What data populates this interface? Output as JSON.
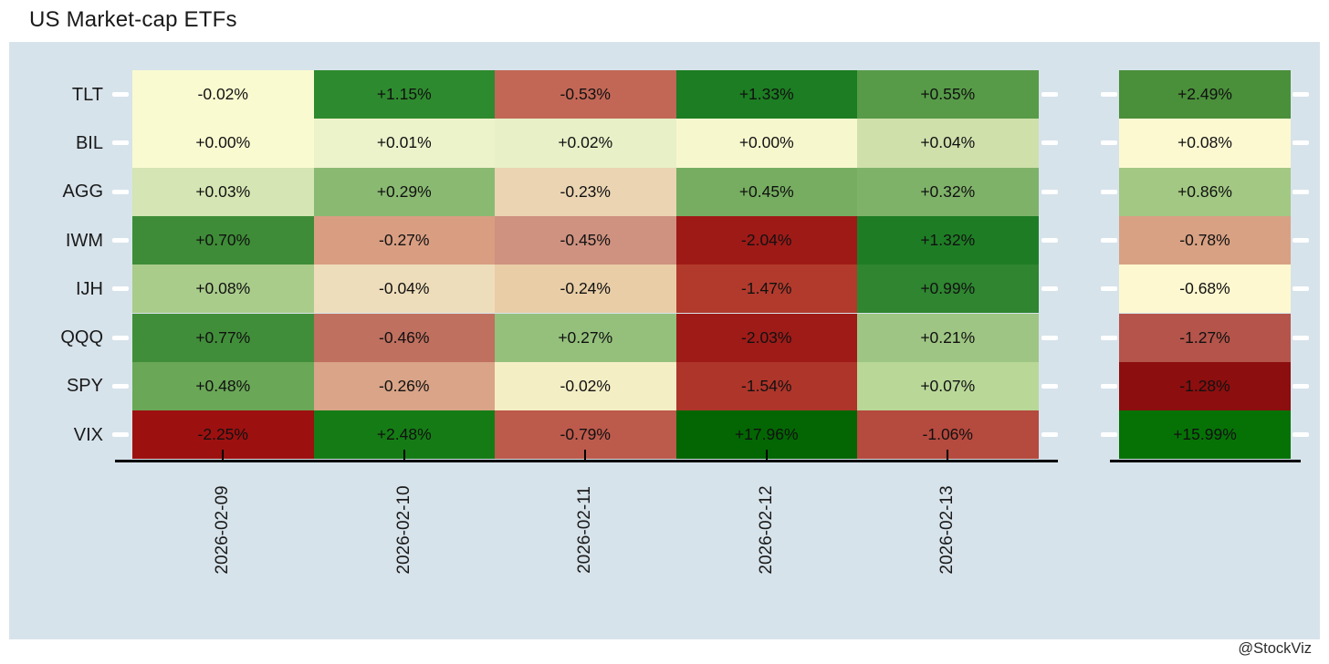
{
  "title": "US Market-cap ETFs",
  "watermark": "@StockViz",
  "style": {
    "panel_bg": "#d7e3eb",
    "axis_color": "#000000",
    "tick_mark_color": "#ffffff",
    "label_color": "#1a1a1a",
    "cell_text_color": "#111111"
  },
  "chart_data": {
    "type": "heatmap",
    "title": "US Market-cap ETFs",
    "unit": "%",
    "value_format": "signed_percent_2dp",
    "colormap": "red-yellow-green",
    "grid": false,
    "x_labels": [
      "2026-02-09",
      "2026-02-10",
      "2026-02-11",
      "2026-02-12",
      "2026-02-13"
    ],
    "y_labels": [
      "TLT",
      "BIL",
      "AGG",
      "IWM",
      "IJH",
      "QQQ",
      "SPY",
      "VIX"
    ],
    "summary_column_position": "right",
    "rows": [
      {
        "label": "TLT",
        "values": [
          -0.02,
          1.15,
          -0.53,
          1.33,
          0.55
        ],
        "cell_colors": [
          "#fafad1",
          "#2e8a2e",
          "#c26756",
          "#1c7d22",
          "#579b48"
        ],
        "summary_value": 2.49,
        "summary_color": "#4a8f3a"
      },
      {
        "label": "BIL",
        "values": [
          0.0,
          0.01,
          0.02,
          0.0,
          0.04
        ],
        "cell_colors": [
          "#fafad1",
          "#ecf2ca",
          "#e7f0c7",
          "#f7f7ce",
          "#cfe0ab"
        ],
        "summary_value": 0.08,
        "summary_color": "#fcf9d1"
      },
      {
        "label": "AGG",
        "values": [
          0.03,
          0.29,
          -0.23,
          0.45,
          0.32
        ],
        "cell_colors": [
          "#d5e5b3",
          "#8aba72",
          "#ead4b2",
          "#76ad60",
          "#7fb269"
        ],
        "summary_value": 0.86,
        "summary_color": "#a2c883"
      },
      {
        "label": "IWM",
        "values": [
          0.7,
          -0.27,
          -0.45,
          -2.04,
          1.32
        ],
        "cell_colors": [
          "#3e8c37",
          "#d99e82",
          "#cf9280",
          "#9e1a17",
          "#1e7d24"
        ],
        "summary_value": -0.78,
        "summary_color": "#d8a183"
      },
      {
        "label": "IJH",
        "values": [
          0.08,
          -0.04,
          -0.24,
          -1.47,
          0.99
        ],
        "cell_colors": [
          "#a9cc8b",
          "#eeddba",
          "#e8cda6",
          "#b23a2c",
          "#2f8530"
        ],
        "summary_value": -0.68,
        "summary_color": "#fdf8cf"
      },
      {
        "label": "QQQ",
        "values": [
          0.77,
          -0.46,
          0.27,
          -2.03,
          0.21
        ],
        "cell_colors": [
          "#418e3a",
          "#c0705f",
          "#94c07c",
          "#9e1b18",
          "#9ec583"
        ],
        "summary_value": -1.27,
        "summary_color": "#b4544a"
      },
      {
        "label": "SPY",
        "values": [
          0.48,
          -0.26,
          -0.02,
          -1.54,
          0.07
        ],
        "cell_colors": [
          "#6aa757",
          "#d9a487",
          "#f4eec5",
          "#ae352a",
          "#b9d898"
        ],
        "summary_value": -1.28,
        "summary_color": "#8c0e0e"
      },
      {
        "label": "VIX",
        "values": [
          -2.25,
          2.48,
          -0.79,
          17.96,
          -1.06
        ],
        "cell_colors": [
          "#9c1010",
          "#157c15",
          "#bc5a4c",
          "#036603",
          "#b54a3e"
        ],
        "summary_value": 15.99,
        "summary_color": "#067206"
      }
    ]
  }
}
